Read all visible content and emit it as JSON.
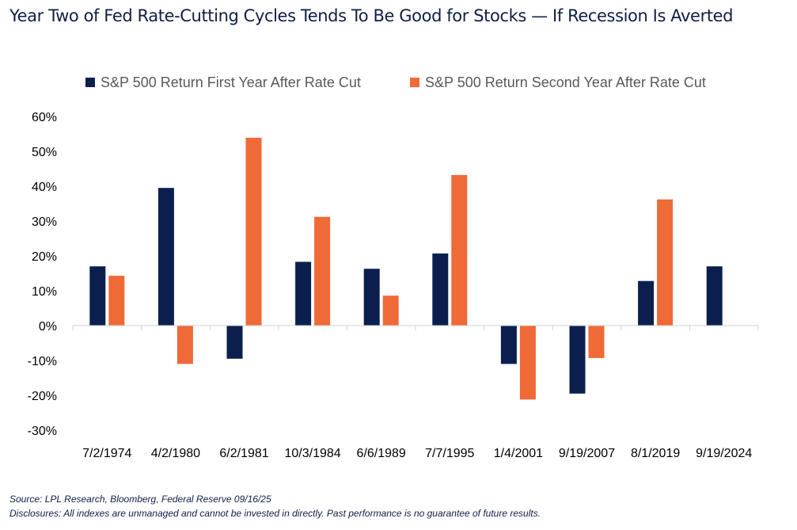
{
  "title": "Year Two of Fed Rate-Cutting Cycles Tends To Be Good for Stocks — If Recession Is Averted",
  "source": "Source: LPL Research, Bloomberg, Federal Reserve 09/16/25",
  "disclosure": "Disclosures: All indexes are unmanaged and cannot be invested in directly. Past performance is no guarantee of future results.",
  "colors": {
    "first_year": "#0b1f4f",
    "second_year": "#ef6a37",
    "axis": "#d0d0d0",
    "text": "#000000"
  },
  "chart_data": {
    "type": "bar",
    "title": "Year Two of Fed Rate-Cutting Cycles Tends To Be Good for Stocks — If Recession Is Averted",
    "xlabel": "",
    "ylabel": "",
    "categories": [
      "7/2/1974",
      "4/2/1980",
      "6/2/1981",
      "10/3/1984",
      "6/6/1989",
      "7/7/1995",
      "1/4/2001",
      "9/19/2007",
      "8/1/2019",
      "9/19/2024"
    ],
    "series": [
      {
        "name": "S&P 500 Return First Year After Rate Cut",
        "color": "#0b1f4f",
        "values": [
          17.0,
          39.5,
          -9.5,
          18.3,
          16.3,
          20.7,
          -11.0,
          -19.5,
          12.8,
          17.0
        ]
      },
      {
        "name": "S&P 500 Return Second Year After Rate Cut",
        "color": "#ef6a37",
        "values": [
          14.3,
          -11.0,
          53.9,
          31.2,
          8.6,
          43.2,
          -21.2,
          -9.3,
          36.2,
          null
        ]
      }
    ],
    "ylim": [
      -30,
      60
    ],
    "yticks": [
      -30,
      -20,
      -10,
      0,
      10,
      20,
      30,
      40,
      50,
      60
    ],
    "ytick_labels": [
      "-30%",
      "-20%",
      "-10%",
      "0%",
      "10%",
      "20%",
      "30%",
      "40%",
      "50%",
      "60%"
    ],
    "legend": "top",
    "grid": false
  }
}
